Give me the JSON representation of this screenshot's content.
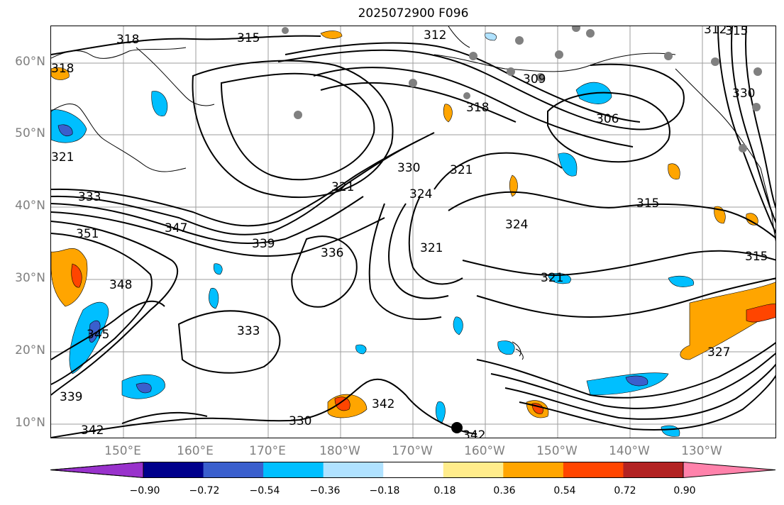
{
  "title": "2025072900 F096",
  "lat_labels": [
    "60°N",
    "50°N",
    "40°N",
    "30°N",
    "20°N",
    "10°N"
  ],
  "lon_labels": [
    "150°E",
    "160°E",
    "170°E",
    "180°W",
    "170°W",
    "160°W",
    "150°W",
    "140°W",
    "130°W"
  ],
  "colorbar": {
    "tick_labels": [
      "−0.90",
      "−0.72",
      "−0.54",
      "−0.36",
      "−0.18",
      "0.18",
      "0.36",
      "0.54",
      "0.72",
      "0.90"
    ],
    "colors": [
      "#9932cc",
      "#00008b",
      "#3a5fcd",
      "#00bfff",
      "#b0e2ff",
      "#ffffff",
      "#ffec8b",
      "#ffa500",
      "#ff4500",
      "#b22222",
      "#ff82ab"
    ]
  },
  "contour_labels": [
    "318",
    "315",
    "312",
    "312",
    "315",
    "318",
    "318",
    "321",
    "309",
    "306",
    "330",
    "321",
    "330",
    "333",
    "324",
    "321",
    "315",
    "347",
    "339",
    "336",
    "324",
    "321",
    "315",
    "351",
    "348",
    "333",
    "321",
    "345",
    "339",
    "330",
    "342",
    "342",
    "342",
    "327"
  ]
}
